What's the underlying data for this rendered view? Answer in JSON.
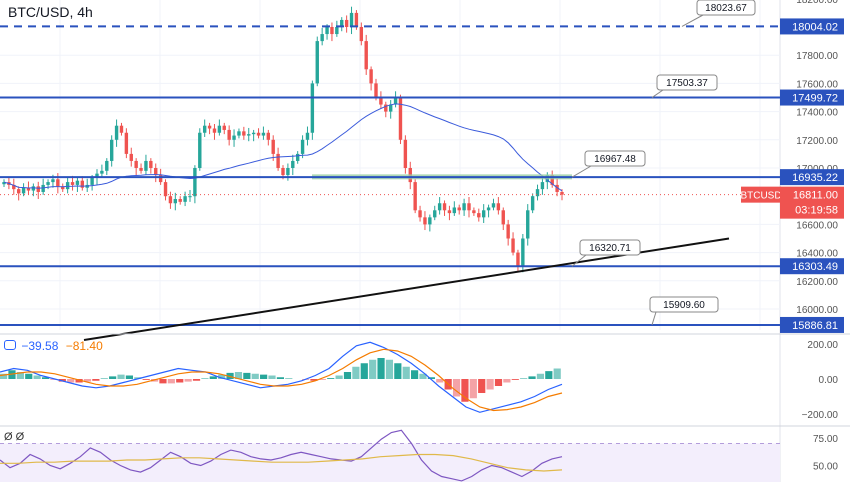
{
  "title": "BTC/USD, 4h",
  "macd_legend": {
    "macd_value": "−39.58",
    "signal_value": "−81.40"
  },
  "rsi_legend": "Ø Ø",
  "symbol_tag": {
    "label": "BTCUSD",
    "price": "16811.00",
    "countdown": "03:19:58"
  },
  "colors": {
    "up": "#26a69a",
    "down": "#ef5350",
    "level": "#2a52be",
    "ma": "#3b5bdb",
    "trend": "#111111",
    "macd": "#2962ff",
    "signal": "#f57c00",
    "rsi": "#e0b94a"
  },
  "chart_data": [
    {
      "type": "candlestick",
      "title": "BTC/USD, 4h",
      "ylim": [
        15800,
        18200
      ],
      "y_ticks": [
        "18200.00",
        "17800.00",
        "17600.00",
        "17400.00",
        "17200.00",
        "17000.00",
        "16600.00",
        "16400.00",
        "16200.00",
        "16000.00"
      ],
      "grid": true,
      "horizontal_levels": [
        {
          "price": 18004.02,
          "label": "18004.02",
          "style": "dashed"
        },
        {
          "price": 17499.72,
          "label": "17499.72",
          "style": "solid"
        },
        {
          "price": 16935.22,
          "label": "16935.22",
          "style": "solid"
        },
        {
          "price": 16303.49,
          "label": "16303.49",
          "style": "solid"
        },
        {
          "price": 15886.81,
          "label": "15886.81",
          "style": "solid"
        }
      ],
      "callouts": [
        "18023.67",
        "17503.37",
        "16967.48",
        "16320.71",
        "15909.60"
      ],
      "trendline": {
        "from": 15780,
        "to": 16500,
        "label": ""
      },
      "current_price": 16811.0,
      "closes": [
        16900,
        16880,
        16850,
        16820,
        16860,
        16840,
        16870,
        16830,
        16880,
        16900,
        16920,
        16870,
        16850,
        16900,
        16880,
        16910,
        16860,
        16880,
        16930,
        16960,
        16980,
        17050,
        17200,
        17300,
        17250,
        17100,
        17050,
        17000,
        16980,
        17050,
        17000,
        16950,
        16900,
        16800,
        16750,
        16780,
        16760,
        16800,
        16800,
        17000,
        17250,
        17300,
        17280,
        17250,
        17300,
        17270,
        17200,
        17230,
        17260,
        17230,
        17240,
        17250,
        17230,
        17250,
        17200,
        17100,
        17000,
        16950,
        17000,
        17050,
        17100,
        17200,
        17250,
        17600,
        17900,
        17950,
        18000,
        17950,
        18000,
        18050,
        18000,
        18100,
        18000,
        17900,
        17700,
        17600,
        17500,
        17450,
        17400,
        17450,
        17500,
        17200,
        17000,
        16900,
        16700,
        16650,
        16600,
        16650,
        16700,
        16750,
        16700,
        16680,
        16720,
        16700,
        16750,
        16700,
        16680,
        16650,
        16700,
        16720,
        16750,
        16700,
        16600,
        16500,
        16400,
        16300,
        16500,
        16700,
        16800,
        16850,
        16900,
        16950,
        16880,
        16830,
        16811
      ]
    },
    {
      "type": "macd",
      "y_ticks": [
        "200.00",
        "0.00",
        "−200.00"
      ],
      "ylim": [
        -250,
        250
      ],
      "values": {
        "macd": -39.58,
        "signal": -81.4
      }
    },
    {
      "type": "rsi",
      "y_ticks": [
        "75.00",
        "50.00"
      ],
      "ylim": [
        30,
        85
      ]
    }
  ]
}
